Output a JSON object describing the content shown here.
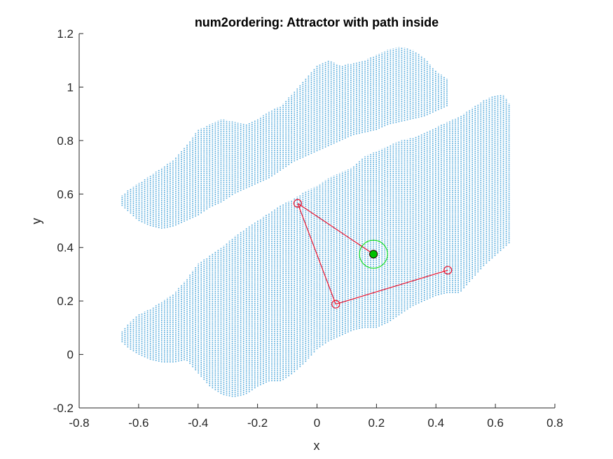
{
  "chart_data": {
    "type": "scatter",
    "title": "num2ordering: Attractor with path inside",
    "xlabel": "x",
    "ylabel": "y",
    "xlim": [
      -0.8,
      0.8
    ],
    "ylim": [
      -0.2,
      1.2
    ],
    "xticks": [
      -0.8,
      -0.6,
      -0.4,
      -0.2,
      0,
      0.2,
      0.4,
      0.6,
      0.8
    ],
    "yticks": [
      -0.2,
      0,
      0.2,
      0.4,
      0.6,
      0.8,
      1,
      1.2
    ],
    "xtick_labels": [
      "-0.8",
      "-0.6",
      "-0.4",
      "-0.2",
      "0",
      "0.2",
      "0.4",
      "0.6",
      "0.8"
    ],
    "ytick_labels": [
      "-0.2",
      "0",
      "0.2",
      "0.4",
      "0.6",
      "0.8",
      "1",
      "1.2"
    ],
    "grid": false,
    "attractor": {
      "color": "#4DA6DA",
      "column_spacing": 0.0095,
      "columns": [
        {
          "x": -0.66,
          "ymin": 0.05,
          "ymax": 0.08
        },
        {
          "x": -0.63,
          "ymin": 0.02,
          "ymax": 0.12
        },
        {
          "x": -0.6,
          "ymin": 0.0,
          "ymax": 0.15
        },
        {
          "x": -0.56,
          "ymin": -0.02,
          "ymax": 0.17
        },
        {
          "x": -0.52,
          "ymin": -0.03,
          "ymax": 0.2
        },
        {
          "x": -0.48,
          "ymin": -0.03,
          "ymax": 0.23
        },
        {
          "x": -0.44,
          "ymin": -0.02,
          "ymax": 0.28
        },
        {
          "x": -0.4,
          "ymin": -0.07,
          "ymax": 0.34
        },
        {
          "x": -0.36,
          "ymin": -0.12,
          "ymax": 0.37
        },
        {
          "x": -0.32,
          "ymin": -0.15,
          "ymax": 0.4
        },
        {
          "x": -0.28,
          "ymin": -0.16,
          "ymax": 0.44
        },
        {
          "x": -0.24,
          "ymin": -0.15,
          "ymax": 0.47
        },
        {
          "x": -0.2,
          "ymin": -0.12,
          "ymax": 0.5
        },
        {
          "x": -0.16,
          "ymin": -0.1,
          "ymax": 0.53
        },
        {
          "x": -0.12,
          "ymin": -0.1,
          "ymax": 0.56
        },
        {
          "x": -0.08,
          "ymin": -0.07,
          "ymax": 0.58
        },
        {
          "x": -0.04,
          "ymin": -0.03,
          "ymax": 0.61
        },
        {
          "x": 0.0,
          "ymin": 0.02,
          "ymax": 0.63
        },
        {
          "x": 0.04,
          "ymin": 0.05,
          "ymax": 0.66
        },
        {
          "x": 0.08,
          "ymin": 0.07,
          "ymax": 0.68
        },
        {
          "x": 0.12,
          "ymin": 0.09,
          "ymax": 0.7
        },
        {
          "x": 0.16,
          "ymin": 0.1,
          "ymax": 0.74
        },
        {
          "x": 0.2,
          "ymin": 0.1,
          "ymax": 0.76
        },
        {
          "x": 0.24,
          "ymin": 0.12,
          "ymax": 0.78
        },
        {
          "x": 0.28,
          "ymin": 0.15,
          "ymax": 0.8
        },
        {
          "x": 0.32,
          "ymin": 0.18,
          "ymax": 0.81
        },
        {
          "x": 0.36,
          "ymin": 0.2,
          "ymax": 0.83
        },
        {
          "x": 0.4,
          "ymin": 0.22,
          "ymax": 0.85
        },
        {
          "x": 0.44,
          "ymin": 0.23,
          "ymax": 0.87
        },
        {
          "x": 0.48,
          "ymin": 0.23,
          "ymax": 0.89
        },
        {
          "x": 0.52,
          "ymin": 0.28,
          "ymax": 0.92
        },
        {
          "x": 0.56,
          "ymin": 0.33,
          "ymax": 0.95
        },
        {
          "x": 0.6,
          "ymin": 0.37,
          "ymax": 0.97
        },
        {
          "x": 0.63,
          "ymin": 0.4,
          "ymax": 0.97
        },
        {
          "x": 0.65,
          "ymin": 0.42,
          "ymax": 0.93
        }
      ],
      "upper_columns": [
        {
          "x": -0.66,
          "ymin": 0.56,
          "ymax": 0.59
        },
        {
          "x": -0.63,
          "ymin": 0.53,
          "ymax": 0.62
        },
        {
          "x": -0.6,
          "ymin": 0.5,
          "ymax": 0.64
        },
        {
          "x": -0.56,
          "ymin": 0.48,
          "ymax": 0.67
        },
        {
          "x": -0.52,
          "ymin": 0.47,
          "ymax": 0.7
        },
        {
          "x": -0.48,
          "ymin": 0.48,
          "ymax": 0.73
        },
        {
          "x": -0.44,
          "ymin": 0.5,
          "ymax": 0.78
        },
        {
          "x": -0.4,
          "ymin": 0.52,
          "ymax": 0.84
        },
        {
          "x": -0.36,
          "ymin": 0.55,
          "ymax": 0.86
        },
        {
          "x": -0.32,
          "ymin": 0.57,
          "ymax": 0.88
        },
        {
          "x": -0.28,
          "ymin": 0.6,
          "ymax": 0.87
        },
        {
          "x": -0.24,
          "ymin": 0.62,
          "ymax": 0.86
        },
        {
          "x": -0.2,
          "ymin": 0.64,
          "ymax": 0.88
        },
        {
          "x": -0.16,
          "ymin": 0.66,
          "ymax": 0.91
        },
        {
          "x": -0.12,
          "ymin": 0.69,
          "ymax": 0.93
        },
        {
          "x": -0.08,
          "ymin": 0.72,
          "ymax": 0.98
        },
        {
          "x": -0.04,
          "ymin": 0.74,
          "ymax": 1.03
        },
        {
          "x": 0.0,
          "ymin": 0.76,
          "ymax": 1.08
        },
        {
          "x": 0.04,
          "ymin": 0.78,
          "ymax": 1.1
        },
        {
          "x": 0.08,
          "ymin": 0.8,
          "ymax": 1.08
        },
        {
          "x": 0.12,
          "ymin": 0.82,
          "ymax": 1.09
        },
        {
          "x": 0.16,
          "ymin": 0.83,
          "ymax": 1.1
        },
        {
          "x": 0.2,
          "ymin": 0.84,
          "ymax": 1.12
        },
        {
          "x": 0.24,
          "ymin": 0.86,
          "ymax": 1.14
        },
        {
          "x": 0.28,
          "ymin": 0.87,
          "ymax": 1.15
        },
        {
          "x": 0.32,
          "ymin": 0.88,
          "ymax": 1.14
        },
        {
          "x": 0.36,
          "ymin": 0.89,
          "ymax": 1.11
        },
        {
          "x": 0.4,
          "ymin": 0.91,
          "ymax": 1.06
        },
        {
          "x": 0.44,
          "ymin": 0.93,
          "ymax": 1.03
        }
      ]
    },
    "path": {
      "color": "#E8112D",
      "points": [
        {
          "x": 0.19,
          "y": 0.375
        },
        {
          "x": -0.065,
          "y": 0.565
        },
        {
          "x": 0.063,
          "y": 0.188
        },
        {
          "x": 0.44,
          "y": 0.315
        }
      ]
    },
    "start_point": {
      "x": 0.19,
      "y": 0.375,
      "marker_color": "#00C000",
      "ring_color": "#00E000"
    }
  }
}
